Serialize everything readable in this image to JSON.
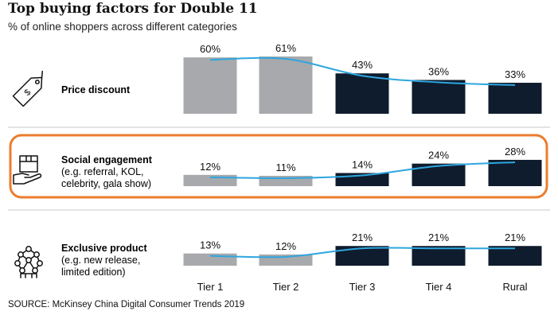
{
  "title": "Top buying factors for Double 11",
  "subtitle": "% of online shoppers across different categories",
  "source": "SOURCE: McKinsey China Digital Consumer Trends 2019",
  "colors": {
    "tier_low": "#a7a9ac",
    "tier_high": "#0f1c2d",
    "trend_line": "#2ea6df",
    "highlight_border": "#ec7c2d",
    "separator": "#c8c8c8"
  },
  "chart_data": {
    "type": "bar",
    "categories": [
      "Tier 1",
      "Tier 2",
      "Tier 3",
      "Tier 4",
      "Rural"
    ],
    "series": [
      {
        "name": "Price discount",
        "icon": "price-tag-icon",
        "lines": [
          "Price discount"
        ],
        "values": [
          60,
          61,
          43,
          36,
          33
        ],
        "labels": [
          "60%",
          "61%",
          "43%",
          "36%",
          "33%"
        ]
      },
      {
        "name": "Social engagement",
        "icon": "social-box-hand-icon",
        "highlighted": true,
        "lines": [
          "Social engagement",
          "(e.g. referral, KOL,",
          "celebrity, gala show)"
        ],
        "values": [
          12,
          11,
          14,
          24,
          28
        ],
        "labels": [
          "12%",
          "11%",
          "14%",
          "24%",
          "28%"
        ]
      },
      {
        "name": "Exclusive product",
        "icon": "molecule-icon",
        "lines": [
          "Exclusive product",
          "(e.g. new release,",
          "limited edition)"
        ],
        "values": [
          13,
          12,
          21,
          21,
          21
        ],
        "labels": [
          "13%",
          "12%",
          "21%",
          "21%",
          "21%"
        ]
      }
    ],
    "legend": "none",
    "grid": false,
    "bar_colors": [
      "#a7a9ac",
      "#a7a9ac",
      "#0f1c2d",
      "#0f1c2d",
      "#0f1c2d"
    ]
  }
}
